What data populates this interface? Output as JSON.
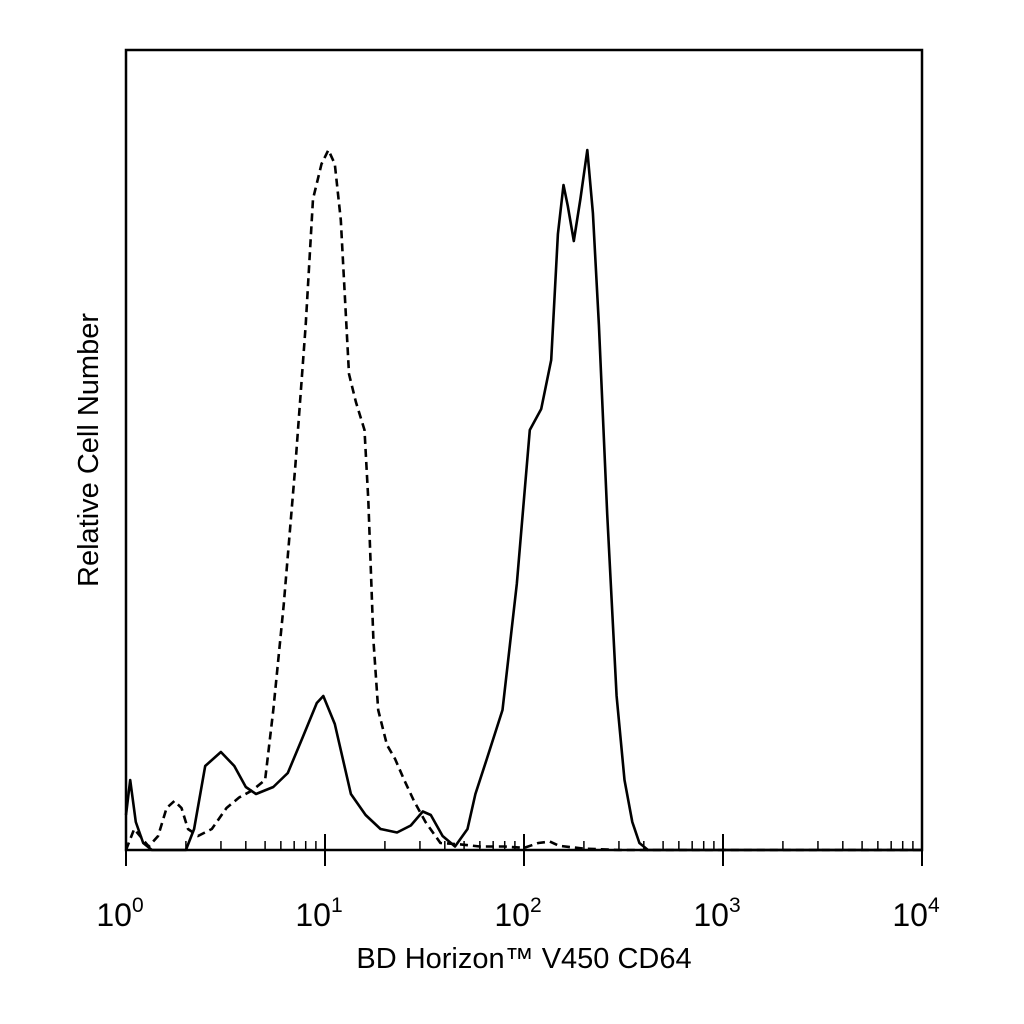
{
  "chart_data": {
    "type": "line",
    "title": "",
    "xlabel": "BD Horizon™ V450 CD64",
    "ylabel": "Relative Cell Number",
    "x_scale": "log",
    "xlim": [
      1,
      10000
    ],
    "ylim": [
      0,
      100
    ],
    "grid": false,
    "legend": "none",
    "x_ticks": [
      {
        "value": 1,
        "base": "10",
        "exp": "0"
      },
      {
        "value": 10,
        "base": "10",
        "exp": "1"
      },
      {
        "value": 100,
        "base": "10",
        "exp": "2"
      },
      {
        "value": 1000,
        "base": "10",
        "exp": "3"
      },
      {
        "value": 10000,
        "base": "10",
        "exp": "4"
      }
    ],
    "series": [
      {
        "style": "dashed",
        "color": "#000000",
        "points": [
          [
            1.0,
            0
          ],
          [
            1.1,
            3
          ],
          [
            1.3,
            0.5
          ],
          [
            1.45,
            2
          ],
          [
            1.6,
            6
          ],
          [
            1.75,
            7
          ],
          [
            1.9,
            6
          ],
          [
            2.05,
            3
          ],
          [
            2.3,
            2
          ],
          [
            2.7,
            3
          ],
          [
            3.2,
            6
          ],
          [
            3.7,
            7.5
          ],
          [
            4.3,
            8.5
          ],
          [
            5.0,
            10
          ],
          [
            5.5,
            20
          ],
          [
            6.2,
            35
          ],
          [
            7.1,
            55
          ],
          [
            8.0,
            75
          ],
          [
            8.7,
            93
          ],
          [
            9.6,
            98
          ],
          [
            10.4,
            100
          ],
          [
            11.2,
            98
          ],
          [
            12.0,
            90
          ],
          [
            13.2,
            68
          ],
          [
            14.3,
            64
          ],
          [
            15.8,
            60
          ],
          [
            16.5,
            50
          ],
          [
            17.5,
            30
          ],
          [
            18.5,
            20
          ],
          [
            20.5,
            15
          ],
          [
            22.5,
            13
          ],
          [
            25,
            10
          ],
          [
            28,
            7
          ],
          [
            32,
            4
          ],
          [
            38,
            1
          ],
          [
            48,
            0.8
          ],
          [
            60,
            0.5
          ],
          [
            80,
            0.5
          ],
          [
            100,
            0.3
          ],
          [
            118,
            1
          ],
          [
            135,
            1.2
          ],
          [
            150,
            0.6
          ],
          [
            200,
            0.2
          ],
          [
            300,
            0
          ],
          [
            10000,
            0
          ]
        ]
      },
      {
        "style": "solid",
        "color": "#000000",
        "points": [
          [
            1.0,
            5
          ],
          [
            1.05,
            10
          ],
          [
            1.12,
            4
          ],
          [
            1.22,
            1
          ],
          [
            1.35,
            0
          ],
          [
            2.0,
            0
          ],
          [
            2.2,
            3
          ],
          [
            2.5,
            12
          ],
          [
            3.0,
            14
          ],
          [
            3.5,
            12
          ],
          [
            4.0,
            9
          ],
          [
            4.5,
            8
          ],
          [
            5.5,
            9
          ],
          [
            6.5,
            11
          ],
          [
            7.7,
            16
          ],
          [
            9.1,
            21
          ],
          [
            9.8,
            22
          ],
          [
            11.2,
            18
          ],
          [
            13.5,
            8
          ],
          [
            16,
            5
          ],
          [
            19,
            3
          ],
          [
            23,
            2.5
          ],
          [
            27,
            3.5
          ],
          [
            31,
            5.5
          ],
          [
            34,
            5
          ],
          [
            39,
            2
          ],
          [
            45,
            0.5
          ],
          [
            52,
            3
          ],
          [
            57,
            8
          ],
          [
            65,
            13
          ],
          [
            78,
            20
          ],
          [
            92,
            38
          ],
          [
            107,
            60
          ],
          [
            122,
            63
          ],
          [
            137,
            70
          ],
          [
            148,
            88
          ],
          [
            158,
            95
          ],
          [
            166,
            92
          ],
          [
            178,
            87
          ],
          [
            192,
            93
          ],
          [
            208,
            100
          ],
          [
            222,
            91
          ],
          [
            238,
            75
          ],
          [
            262,
            48
          ],
          [
            292,
            22
          ],
          [
            320,
            10
          ],
          [
            350,
            4
          ],
          [
            380,
            1
          ],
          [
            420,
            0
          ],
          [
            10000,
            0
          ]
        ]
      }
    ]
  }
}
